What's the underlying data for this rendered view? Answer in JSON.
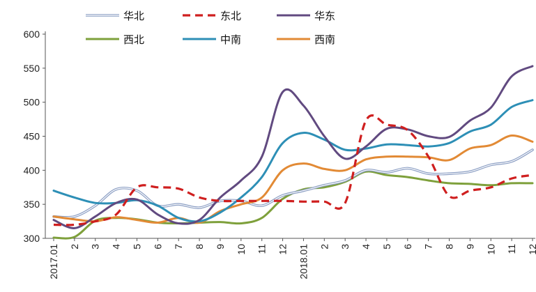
{
  "chart_data": {
    "type": "line",
    "title": "",
    "xlabel": "",
    "ylabel": "",
    "ylim": [
      300,
      600
    ],
    "yticks": [
      300,
      350,
      400,
      450,
      500,
      550,
      600
    ],
    "categories": [
      "2017.01",
      "2",
      "3",
      "4",
      "5",
      "6",
      "7",
      "8",
      "9",
      "10",
      "11",
      "12",
      "2018.01",
      "2",
      "3",
      "4",
      "5",
      "6",
      "7",
      "8",
      "9",
      "10",
      "11",
      "12"
    ],
    "grid": false,
    "legend_position": "top",
    "series": [
      {
        "name": "华北",
        "color": "#9fb3d6",
        "style": "double",
        "values": [
          332,
          332,
          348,
          372,
          370,
          348,
          350,
          345,
          355,
          355,
          348,
          363,
          370,
          378,
          385,
          400,
          397,
          403,
          395,
          395,
          398,
          408,
          413,
          430
        ]
      },
      {
        "name": "东北",
        "color": "#cf1f1f",
        "style": "dashed",
        "values": [
          320,
          320,
          325,
          335,
          375,
          375,
          373,
          360,
          355,
          355,
          355,
          355,
          354,
          354,
          352,
          473,
          467,
          459,
          420,
          362,
          370,
          375,
          388,
          393
        ]
      },
      {
        "name": "华东",
        "color": "#614a80",
        "style": "solid",
        "values": [
          327,
          315,
          332,
          352,
          357,
          335,
          322,
          327,
          360,
          385,
          420,
          515,
          495,
          450,
          417,
          435,
          461,
          460,
          450,
          449,
          473,
          492,
          538,
          553
        ]
      },
      {
        "name": "西北",
        "color": "#7ea03b",
        "style": "solid",
        "values": [
          301,
          302,
          326,
          330,
          328,
          323,
          322,
          323,
          324,
          322,
          330,
          358,
          372,
          375,
          383,
          398,
          393,
          390,
          385,
          381,
          380,
          378,
          381,
          381
        ]
      },
      {
        "name": "中南",
        "color": "#2d8fb6",
        "style": "solid",
        "values": [
          370,
          360,
          352,
          352,
          356,
          348,
          330,
          325,
          338,
          360,
          390,
          440,
          455,
          445,
          430,
          432,
          438,
          437,
          435,
          440,
          457,
          467,
          493,
          503
        ]
      },
      {
        "name": "西南",
        "color": "#e28a35",
        "style": "solid",
        "values": [
          332,
          328,
          325,
          331,
          327,
          323,
          330,
          323,
          340,
          350,
          360,
          400,
          410,
          402,
          400,
          416,
          420,
          420,
          419,
          415,
          432,
          437,
          451,
          442
        ]
      }
    ]
  }
}
